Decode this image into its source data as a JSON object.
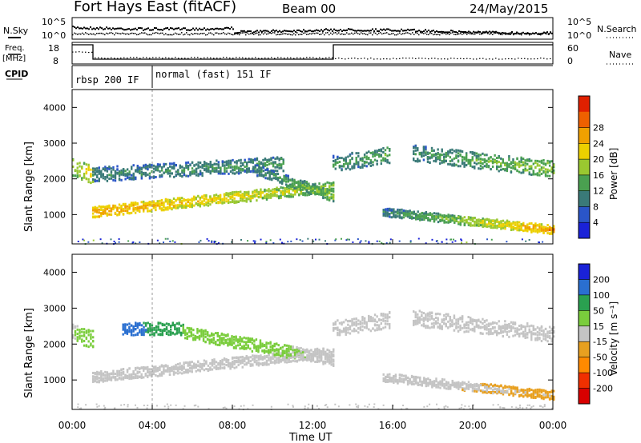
{
  "header": {
    "station": "Fort Hays East (fitACF)",
    "beam": "Beam 00",
    "date": "24/May/2015"
  },
  "side_labels": {
    "nsky": "N.Sky",
    "nsearch": "N.Search",
    "freq": "Freq.",
    "freq_unit": "[MHz]",
    "nave": "Nave",
    "cpid": "CPID"
  },
  "top_ticks": {
    "noise_hi": "10^5",
    "noise_lo": "10^0",
    "freq_hi": "18",
    "freq_lo": "8",
    "nave_hi": "60",
    "nave_lo": "0"
  },
  "cpid_labels": {
    "first": "rbsp 200 IF",
    "second": "normal (fast) 151 IF"
  },
  "axes": {
    "ylabel": "Slant Range [km]",
    "xlabel": "Time UT",
    "y_ticks": [
      "1000",
      "2000",
      "3000",
      "4000"
    ],
    "x_ticks": [
      "00:00",
      "04:00",
      "08:00",
      "12:00",
      "16:00",
      "20:00",
      "00:00"
    ]
  },
  "colorbars": {
    "power": {
      "label": "Power [dB]",
      "ticks": [
        "4",
        "8",
        "12",
        "16",
        "20",
        "24",
        "28"
      ],
      "colors": [
        "#1a22d8",
        "#2a55c8",
        "#3a7a78",
        "#4aa050",
        "#9ac830",
        "#ecd000",
        "#f0a000",
        "#ee6000",
        "#e02000"
      ]
    },
    "velocity": {
      "label": "Velocity [m s⁻¹]",
      "ticks": [
        "200",
        "100",
        "50",
        "15",
        "-15",
        "-50",
        "-100",
        "-200"
      ],
      "colors": [
        "#1a22d8",
        "#2a6fd0",
        "#2aa050",
        "#7acd3c",
        "#c4c4c4",
        "#e8a020",
        "#ff8a00",
        "#f03000",
        "#d80000"
      ]
    }
  },
  "chart_data": [
    {
      "type": "heatmap",
      "panel": "power",
      "ylabel": "Slant Range [km]",
      "xlabel": "Time UT",
      "xlim": [
        0,
        24
      ],
      "ylim": [
        180,
        4500
      ],
      "colorbar": "Power [dB]",
      "crange": [
        0,
        32
      ],
      "bands": [
        {
          "x": [
            0,
            1.0
          ],
          "ycenter": [
            2350,
            2150
          ],
          "width": 500,
          "value": [
            12,
            18
          ]
        },
        {
          "x": [
            1.0,
            13.0
          ],
          "ycenter": [
            1100,
            1800
          ],
          "width": 300,
          "value": [
            20,
            12
          ]
        },
        {
          "x": [
            1.0,
            10.5
          ],
          "ycenter": [
            2150,
            2450
          ],
          "width": 400,
          "value": [
            6,
            8
          ]
        },
        {
          "x": [
            9.0,
            13.0
          ],
          "ycenter": [
            2300,
            1550
          ],
          "width": 300,
          "value": [
            6,
            12
          ]
        },
        {
          "x": [
            13.0,
            15.8
          ],
          "ycenter": [
            2450,
            2700
          ],
          "width": 450,
          "value": [
            7,
            9
          ]
        },
        {
          "x": [
            17.0,
            24.0
          ],
          "ycenter": [
            2750,
            2300
          ],
          "width": 450,
          "value": [
            7,
            12
          ]
        },
        {
          "x": [
            15.5,
            24.0
          ],
          "ycenter": [
            1100,
            600
          ],
          "width": 250,
          "value": [
            6,
            20
          ]
        }
      ]
    },
    {
      "type": "heatmap",
      "panel": "velocity",
      "ylabel": "Slant Range [km]",
      "xlabel": "Time UT",
      "xlim": [
        0,
        24
      ],
      "ylim": [
        180,
        4500
      ],
      "colorbar": "Velocity [m s⁻¹]",
      "crange": [
        -200,
        200
      ],
      "bands": [
        {
          "x": [
            0,
            1.0
          ],
          "ycenter": [
            2350,
            2150
          ],
          "width": 500,
          "value": [
            10,
            30
          ]
        },
        {
          "x": [
            1.0,
            13.0
          ],
          "ycenter": [
            1100,
            1800
          ],
          "width": 300,
          "value": [
            0,
            0
          ]
        },
        {
          "x": [
            2.5,
            5.5
          ],
          "ycenter": [
            2450,
            2450
          ],
          "width": 350,
          "value": [
            120,
            60
          ]
        },
        {
          "x": [
            5.5,
            13.0
          ],
          "ycenter": [
            2350,
            1600
          ],
          "width": 350,
          "value": [
            40,
            5
          ]
        },
        {
          "x": [
            13.0,
            15.8
          ],
          "ycenter": [
            2450,
            2700
          ],
          "width": 450,
          "value": [
            0,
            0
          ]
        },
        {
          "x": [
            17.0,
            24.0
          ],
          "ycenter": [
            2750,
            2300
          ],
          "width": 450,
          "value": [
            0,
            0
          ]
        },
        {
          "x": [
            15.5,
            24.0
          ],
          "ycenter": [
            1100,
            600
          ],
          "width": 250,
          "value": [
            -10,
            -20
          ]
        }
      ]
    }
  ]
}
